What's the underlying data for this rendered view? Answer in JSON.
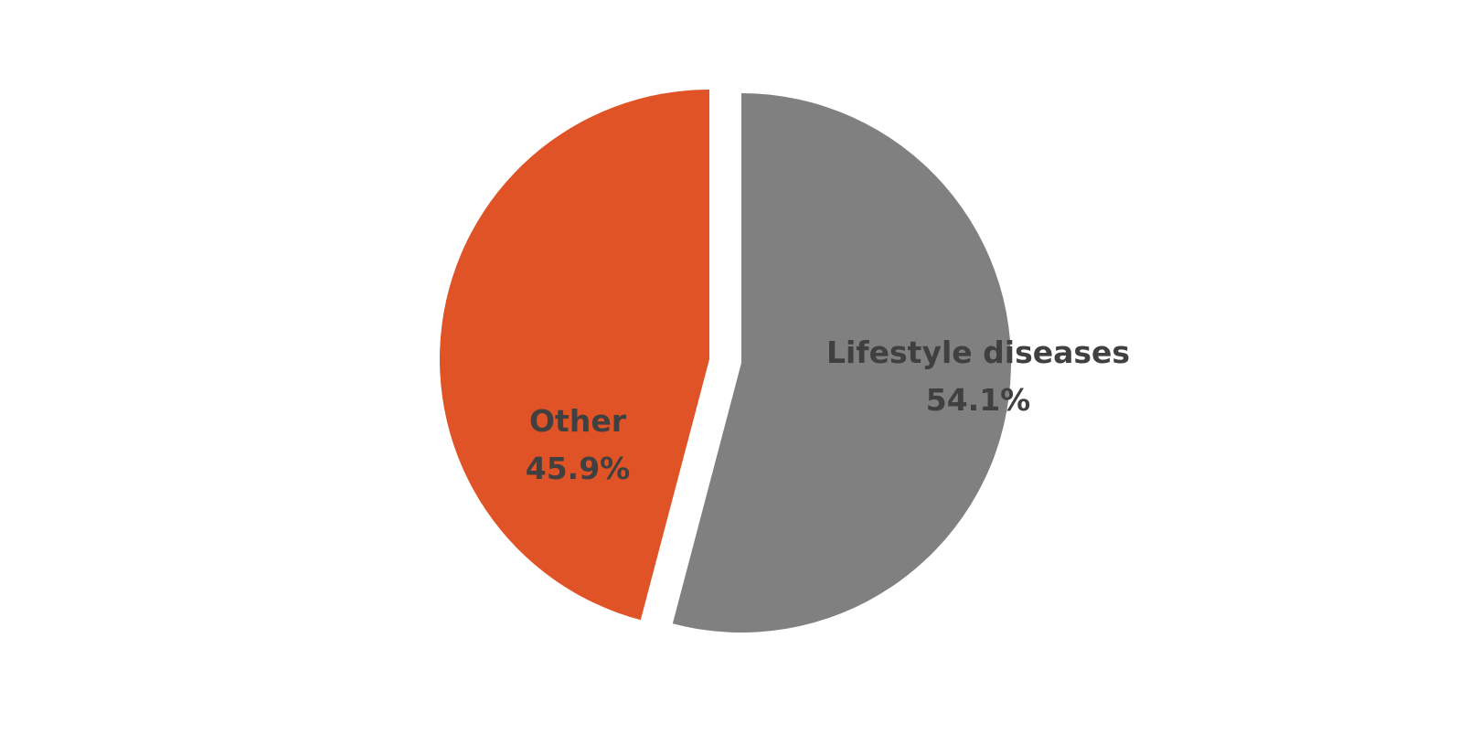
{
  "chart_data": {
    "type": "pie",
    "slices": [
      {
        "label": "Lifestyle diseases",
        "value": 54.1,
        "value_label": "54.1%",
        "color": "#808080"
      },
      {
        "label": "Other",
        "value": 45.9,
        "value_label": "45.9%",
        "color": "#E05327"
      }
    ],
    "title": "",
    "legend": "none",
    "label_color": "#404040",
    "start_angle_deg": 0,
    "direction": "clockwise",
    "exploded": true
  }
}
